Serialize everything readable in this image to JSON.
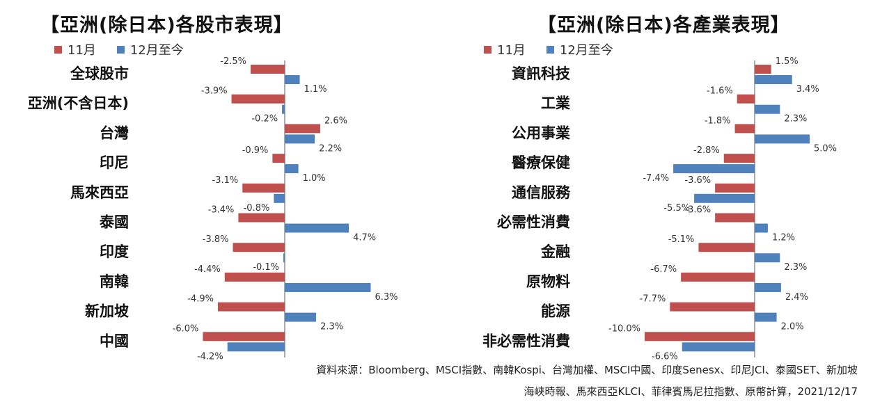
{
  "colors": {
    "november": "#c0504d",
    "ytd": "#4f81bd",
    "axis": "#555555"
  },
  "chart_data": [
    {
      "type": "bar",
      "orientation": "horizontal",
      "title": "【亞洲(除日本)各股市表現】",
      "categories": [
        "全球股市",
        "亞洲(不含日本)",
        "台灣",
        "印尼",
        "馬來西亞",
        "泰國",
        "印度",
        "南韓",
        "新加坡",
        "中國"
      ],
      "series": [
        {
          "name": "11月",
          "color": "#c0504d",
          "values": [
            -2.5,
            -3.9,
            2.6,
            -0.9,
            -3.1,
            -3.4,
            -3.8,
            -4.4,
            -4.9,
            -6.0
          ],
          "labels": [
            "-2.5%",
            "-3.9%",
            "2.6%",
            "-0.9%",
            "-3.1%",
            "-3.4%",
            "-3.8%",
            "-4.4%",
            "-4.9%",
            "-6.0%"
          ]
        },
        {
          "name": "12月至今",
          "color": "#4f81bd",
          "values": [
            1.1,
            -0.2,
            2.2,
            1.0,
            -0.8,
            4.7,
            -0.1,
            6.3,
            2.3,
            -4.2
          ],
          "labels": [
            "1.1%",
            "-0.2%",
            "2.2%",
            "1.0%",
            "-0.8%",
            "4.7%",
            "-0.1%",
            "6.3%",
            "2.3%",
            "-4.2%"
          ]
        }
      ],
      "xlim": [
        -6.5,
        8.0
      ],
      "grid": false,
      "legend": "top-left"
    },
    {
      "type": "bar",
      "orientation": "horizontal",
      "title": "【亞洲(除日本)各產業表現】",
      "categories": [
        "資訊科技",
        "工業",
        "公用事業",
        "醫療保健",
        "通信服務",
        "必需性消費",
        "金融",
        "原物料",
        "能源",
        "非必需性消費"
      ],
      "series": [
        {
          "name": "11月",
          "color": "#c0504d",
          "values": [
            1.5,
            -1.6,
            -1.8,
            -2.8,
            -3.6,
            -3.6,
            -5.1,
            -6.7,
            -7.7,
            -10.0
          ],
          "labels": [
            "1.5%",
            "-1.6%",
            "-1.8%",
            "-2.8%",
            "-3.6%",
            "-3.6%",
            "-5.1%",
            "-6.7%",
            "-7.7%",
            "-10.0%"
          ]
        },
        {
          "name": "12月至今",
          "color": "#4f81bd",
          "values": [
            3.4,
            2.3,
            5.0,
            -7.4,
            -5.5,
            1.2,
            2.3,
            2.4,
            2.0,
            -6.6
          ],
          "labels": [
            "3.4%",
            "2.3%",
            "5.0%",
            "-7.4%",
            "-5.5%",
            "1.2%",
            "2.3%",
            "2.4%",
            "2.0%",
            "-6.6%"
          ]
        }
      ],
      "xlim": [
        -10.6,
        6.0
      ],
      "grid": false,
      "legend": "top-left"
    }
  ],
  "footer": {
    "line1": "資料來源：Bloomberg、MSCI指數、南韓Kospi、台灣加權、MSCI中國、印度Senesx、印尼JCI、泰國SET、新加坡",
    "line2": "海峽時報、馬來西亞KLCI、菲律賓馬尼拉指數、原幣計算，2021/12/17"
  }
}
